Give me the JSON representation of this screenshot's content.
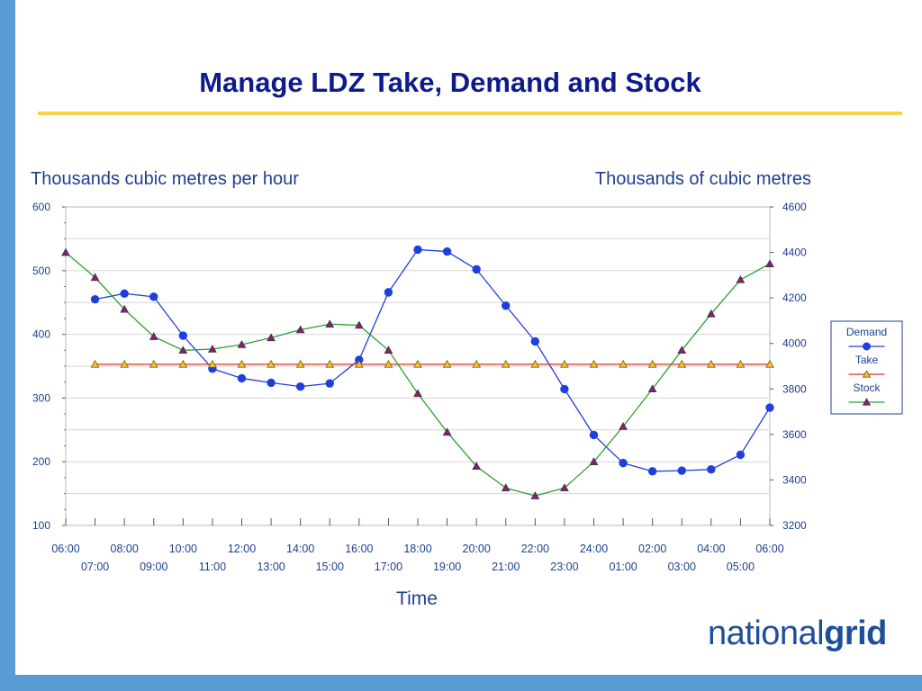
{
  "slide": {
    "title": "Manage LDZ Take, Demand and Stock",
    "logo_prefix": "national",
    "logo_suffix": "grid"
  },
  "colors": {
    "title_text": "#0d1b8c",
    "rule": "#f7d34a",
    "side_bars": "#5b9bd5",
    "axis_text": "#1f3f8f",
    "demand": "#1f3fdd",
    "take": "#e0301e",
    "stock": "#2ea02e",
    "take_marker": "#f2c030",
    "stock_marker": "#8b1a7a"
  },
  "chart_data": {
    "type": "line",
    "left_axis_title": "Thousands cubic metres per hour",
    "right_axis_title": "Thousands of cubic metres",
    "xlabel": "Time",
    "ylim_left": [
      100,
      600
    ],
    "ylim_right": [
      3200,
      4600
    ],
    "yticks_left": [
      "100",
      "200",
      "300",
      "400",
      "500",
      "600"
    ],
    "yticks_right": [
      "3200",
      "3400",
      "3600",
      "3800",
      "4000",
      "4200",
      "4400",
      "4600"
    ],
    "x_ticks_upper": [
      "06:00",
      "08:00",
      "10:00",
      "12:00",
      "14:00",
      "16:00",
      "18:00",
      "20:00",
      "22:00",
      "24:00",
      "02:00",
      "04:00",
      "06:00"
    ],
    "x_ticks_lower": [
      "07:00",
      "09:00",
      "11:00",
      "13:00",
      "15:00",
      "17:00",
      "19:00",
      "21:00",
      "23:00",
      "01:00",
      "03:00",
      "05:00"
    ],
    "legend_position": "right",
    "grid": true,
    "series": [
      {
        "name": "Demand",
        "axis": "left",
        "marker": "circle",
        "x": [
          1,
          2,
          3,
          4,
          5,
          6,
          7,
          8,
          9,
          10,
          11,
          12,
          13,
          14,
          15,
          16,
          17,
          18,
          19,
          20,
          21,
          22,
          23,
          24
        ],
        "values": [
          455,
          464,
          459,
          398,
          346,
          331,
          324,
          318,
          323,
          360,
          466,
          533,
          530,
          502,
          445,
          389,
          314,
          242,
          198,
          185,
          186,
          188,
          211,
          285
        ]
      },
      {
        "name": "Take",
        "axis": "left",
        "marker": "triangle",
        "x": [
          1,
          2,
          3,
          4,
          5,
          6,
          7,
          8,
          9,
          10,
          11,
          12,
          13,
          14,
          15,
          16,
          17,
          18,
          19,
          20,
          21,
          22,
          23,
          24
        ],
        "values": [
          353,
          353,
          353,
          353,
          353,
          353,
          353,
          353,
          353,
          353,
          353,
          353,
          353,
          353,
          353,
          353,
          353,
          353,
          353,
          353,
          353,
          353,
          353,
          353
        ]
      },
      {
        "name": "Stock",
        "axis": "right",
        "marker": "triangle",
        "x": [
          0,
          1,
          2,
          3,
          4,
          5,
          6,
          7,
          8,
          9,
          10,
          11,
          12,
          13,
          14,
          15,
          16,
          17,
          18,
          19,
          20,
          21,
          22,
          23,
          24
        ],
        "values": [
          4400,
          4290,
          4150,
          4030,
          3970,
          3975,
          3995,
          4025,
          4060,
          4085,
          4080,
          3970,
          3780,
          3610,
          3460,
          3365,
          3330,
          3365,
          3480,
          3635,
          3800,
          3970,
          4130,
          4280,
          4350
        ]
      }
    ]
  }
}
